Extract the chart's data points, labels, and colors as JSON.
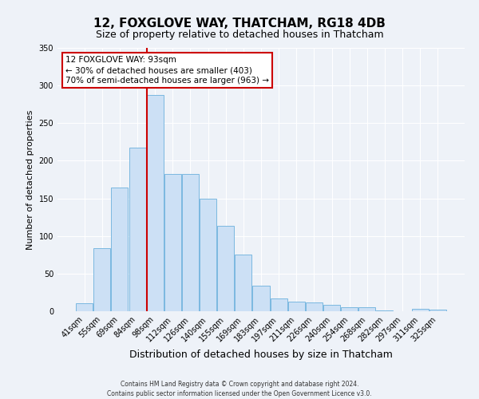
{
  "title": "12, FOXGLOVE WAY, THATCHAM, RG18 4DB",
  "subtitle": "Size of property relative to detached houses in Thatcham",
  "xlabel": "Distribution of detached houses by size in Thatcham",
  "ylabel": "Number of detached properties",
  "bar_labels": [
    "41sqm",
    "55sqm",
    "69sqm",
    "84sqm",
    "98sqm",
    "112sqm",
    "126sqm",
    "140sqm",
    "155sqm",
    "169sqm",
    "183sqm",
    "197sqm",
    "211sqm",
    "226sqm",
    "240sqm",
    "254sqm",
    "268sqm",
    "282sqm",
    "297sqm",
    "311sqm",
    "325sqm"
  ],
  "bar_values": [
    11,
    84,
    164,
    217,
    287,
    182,
    182,
    150,
    114,
    75,
    34,
    17,
    13,
    12,
    9,
    5,
    5,
    1,
    0,
    3,
    2
  ],
  "bar_color": "#cce0f5",
  "bar_edge_color": "#7ab8e0",
  "ylim": [
    0,
    350
  ],
  "yticks": [
    0,
    50,
    100,
    150,
    200,
    250,
    300,
    350
  ],
  "annotation_title": "12 FOXGLOVE WAY: 93sqm",
  "annotation_line1": "← 30% of detached houses are smaller (403)",
  "annotation_line2": "70% of semi-detached houses are larger (963) →",
  "annotation_box_color": "#ffffff",
  "annotation_box_edge": "#cc0000",
  "vline_color": "#cc0000",
  "vline_x_index": 4,
  "footer_line1": "Contains HM Land Registry data © Crown copyright and database right 2024.",
  "footer_line2": "Contains public sector information licensed under the Open Government Licence v3.0.",
  "background_color": "#eef2f8",
  "grid_color": "#ffffff",
  "title_fontsize": 11,
  "subtitle_fontsize": 9,
  "axis_label_fontsize": 9,
  "tick_fontsize": 7,
  "ylabel_fontsize": 8
}
